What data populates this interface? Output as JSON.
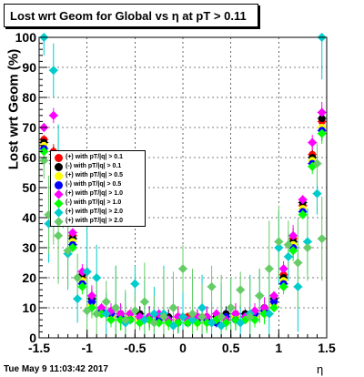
{
  "chart_data": {
    "type": "scatter",
    "title": "Lost wrt Geom for Global vs  η at pT > 0.11",
    "xlabel": "η",
    "ylabel": "Lost wrt Geom (%)",
    "xlim": [
      -1.5,
      1.5
    ],
    "ylim": [
      0,
      100
    ],
    "xticks": [
      "-1.5",
      "-1",
      "-0.5",
      "0",
      "0.5",
      "1",
      "1.5"
    ],
    "yticks": [
      "0",
      "10",
      "20",
      "30",
      "40",
      "50",
      "60",
      "70",
      "80",
      "90",
      "100"
    ],
    "grid": true,
    "legend_position": "left",
    "timestamp": "Tue May  9 11:03:42 2017",
    "series": [
      {
        "name": "(+) with pT/|q| > 0.1",
        "color": "#ff0000",
        "marker": "circle",
        "x": [
          -1.45,
          -1.35,
          -1.25,
          -1.15,
          -1.05,
          -0.95,
          -0.85,
          -0.75,
          -0.65,
          -0.55,
          -0.45,
          -0.35,
          -0.25,
          -0.15,
          -0.05,
          0.05,
          0.15,
          0.25,
          0.35,
          0.45,
          0.55,
          0.65,
          0.75,
          0.85,
          0.95,
          1.05,
          1.15,
          1.25,
          1.35,
          1.45
        ],
        "y": [
          66,
          62,
          44,
          34,
          20,
          12,
          9,
          8,
          7,
          8,
          7,
          6,
          7,
          6,
          7,
          7,
          6,
          7,
          6,
          7,
          8,
          7,
          8,
          9,
          12,
          21,
          33,
          44,
          61,
          72
        ]
      },
      {
        "name": "(-) with pT/|q| > 0.1",
        "color": "#000000",
        "marker": "circle",
        "x": [
          -1.45,
          -1.35,
          -1.25,
          -1.15,
          -1.05,
          -0.95,
          -0.85,
          -0.75,
          -0.65,
          -0.55,
          -0.45,
          -0.35,
          -0.25,
          -0.15,
          -0.05,
          0.05,
          0.15,
          0.25,
          0.35,
          0.45,
          0.55,
          0.65,
          0.75,
          0.85,
          0.95,
          1.05,
          1.15,
          1.25,
          1.35,
          1.45
        ],
        "y": [
          65,
          61,
          43,
          33,
          21,
          13,
          9,
          7,
          8,
          7,
          8,
          7,
          6,
          7,
          6,
          6,
          7,
          6,
          7,
          8,
          7,
          8,
          7,
          10,
          13,
          20,
          32,
          45,
          60,
          73
        ]
      },
      {
        "name": "(+) with pT/|q| > 0.5",
        "color": "#ffff00",
        "marker": "circle",
        "x": [
          -1.45,
          -1.35,
          -1.25,
          -1.15,
          -1.05,
          -0.95,
          -0.85,
          -0.75,
          -0.65,
          -0.55,
          -0.45,
          -0.35,
          -0.25,
          -0.15,
          -0.05,
          0.05,
          0.15,
          0.25,
          0.35,
          0.45,
          0.55,
          0.65,
          0.75,
          0.85,
          0.95,
          1.05,
          1.15,
          1.25,
          1.35,
          1.45
        ],
        "y": [
          64,
          60,
          42,
          32,
          19,
          11,
          8,
          7,
          6,
          7,
          6,
          6,
          6,
          5,
          6,
          6,
          5,
          6,
          6,
          6,
          7,
          6,
          7,
          8,
          11,
          19,
          31,
          43,
          59,
          70
        ]
      },
      {
        "name": "(-) with pT/|q| > 0.5",
        "color": "#0000ff",
        "marker": "circle",
        "x": [
          -1.45,
          -1.35,
          -1.25,
          -1.15,
          -1.05,
          -0.95,
          -0.85,
          -0.75,
          -0.65,
          -0.55,
          -0.45,
          -0.35,
          -0.25,
          -0.15,
          -0.05,
          0.05,
          0.15,
          0.25,
          0.35,
          0.45,
          0.55,
          0.65,
          0.75,
          0.85,
          0.95,
          1.05,
          1.15,
          1.25,
          1.35,
          1.45
        ],
        "y": [
          63,
          59,
          41,
          31,
          18,
          12,
          9,
          8,
          7,
          6,
          7,
          7,
          6,
          6,
          5,
          5,
          6,
          6,
          5,
          7,
          6,
          7,
          8,
          9,
          12,
          18,
          30,
          42,
          58,
          69
        ]
      },
      {
        "name": "(+) with pT/|q| > 1.0",
        "color": "#ff00ff",
        "marker": "diamond",
        "x": [
          -1.45,
          -1.35,
          -1.25,
          -1.15,
          -1.05,
          -0.95,
          -0.85,
          -0.75,
          -0.65,
          -0.55,
          -0.45,
          -0.35,
          -0.25,
          -0.15,
          -0.05,
          0.05,
          0.15,
          0.25,
          0.35,
          0.45,
          0.55,
          0.65,
          0.75,
          0.85,
          0.95,
          1.05,
          1.15,
          1.25,
          1.35,
          1.45
        ],
        "y": [
          70,
          74,
          46,
          35,
          22,
          14,
          10,
          9,
          8,
          8,
          7,
          7,
          8,
          6,
          7,
          6,
          7,
          7,
          8,
          6,
          8,
          7,
          9,
          10,
          14,
          23,
          34,
          46,
          65,
          75
        ]
      },
      {
        "name": "(-) with pT/|q| > 1.0",
        "color": "#00ff00",
        "marker": "diamond",
        "x": [
          -1.45,
          -1.35,
          -1.25,
          -1.15,
          -1.05,
          -0.95,
          -0.85,
          -0.75,
          -0.65,
          -0.55,
          -0.45,
          -0.35,
          -0.25,
          -0.15,
          -0.05,
          0.05,
          0.15,
          0.25,
          0.35,
          0.45,
          0.55,
          0.65,
          0.75,
          0.85,
          0.95,
          1.05,
          1.15,
          1.25,
          1.35,
          1.45
        ],
        "y": [
          62,
          58,
          40,
          30,
          17,
          10,
          8,
          6,
          6,
          6,
          5,
          6,
          5,
          5,
          5,
          5,
          5,
          5,
          6,
          5,
          6,
          6,
          6,
          8,
          10,
          17,
          29,
          41,
          57,
          68
        ]
      },
      {
        "name": "(+) with pT/|q| > 2.0",
        "color": "#00cccc",
        "marker": "diamond",
        "x": [
          -1.45,
          -1.4,
          -1.35,
          -1.3,
          -1.2,
          -1.1,
          -1.0,
          -0.9,
          -0.8,
          -0.7,
          -0.6,
          -0.5,
          -0.4,
          -0.3,
          -0.2,
          -0.1,
          0.0,
          0.1,
          0.2,
          0.3,
          0.4,
          0.5,
          0.6,
          0.7,
          0.8,
          0.9,
          1.0,
          1.1,
          1.2,
          1.3,
          1.4,
          1.45
        ],
        "y": [
          100,
          38,
          89,
          55,
          28,
          13,
          22,
          20,
          8,
          10,
          5,
          18,
          6,
          8,
          8,
          4,
          7,
          6,
          10,
          5,
          4,
          10,
          5,
          8,
          14,
          8,
          30,
          27,
          17,
          32,
          48,
          100
        ]
      },
      {
        "name": "(+) with pT/|q| > 2.0",
        "color": "#66cc66",
        "marker": "diamond",
        "x": [
          -1.45,
          -1.4,
          -1.35,
          -1.3,
          -1.2,
          -1.1,
          -1.0,
          -0.9,
          -0.8,
          -0.7,
          -0.6,
          -0.5,
          -0.4,
          -0.3,
          -0.2,
          -0.1,
          0.0,
          0.1,
          0.2,
          0.3,
          0.4,
          0.5,
          0.6,
          0.7,
          0.8,
          0.9,
          1.0,
          1.1,
          1.2,
          1.3,
          1.4,
          1.45
        ],
        "y": [
          59,
          41,
          40,
          34,
          29,
          20,
          9,
          8,
          12,
          10,
          6,
          9,
          12,
          5,
          7,
          10,
          23,
          8,
          7,
          17,
          7,
          10,
          16,
          7,
          14,
          23,
          32,
          31,
          25,
          30,
          58,
          33
        ]
      }
    ]
  }
}
